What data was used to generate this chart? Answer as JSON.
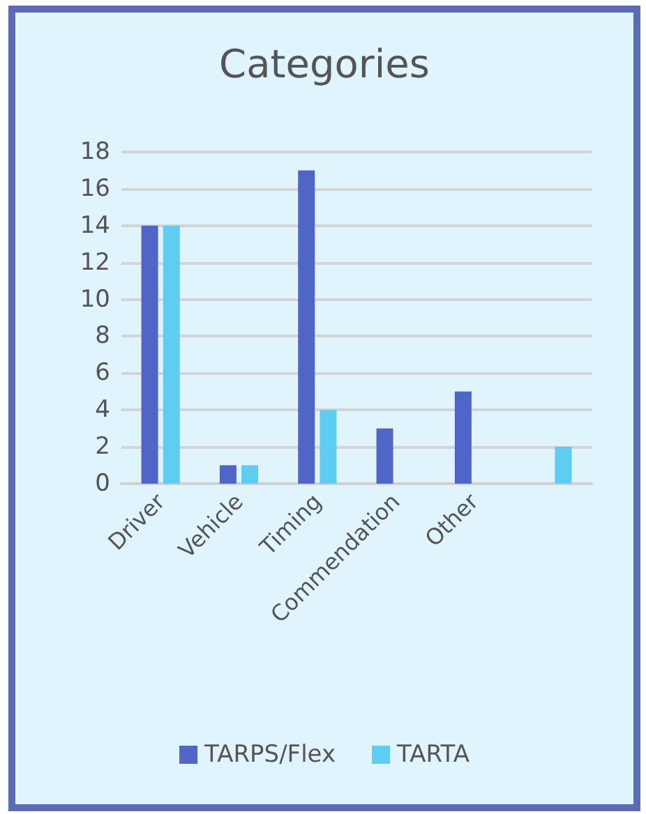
{
  "chart_data": {
    "type": "bar",
    "title": "Categories",
    "categories": [
      "Driver",
      "Vehicle",
      "Timing",
      "Commendation",
      "Other",
      null
    ],
    "series": [
      {
        "name": "TARPS/Flex",
        "color": "#4f66c8",
        "values": [
          14,
          1,
          17,
          3,
          5,
          null
        ]
      },
      {
        "name": "TARTA",
        "color": "#5fcdf2",
        "values": [
          14,
          1,
          4,
          null,
          null,
          2
        ]
      }
    ],
    "ylim": [
      0,
      18
    ],
    "yticks": [
      0,
      2,
      4,
      6,
      8,
      10,
      12,
      14,
      16,
      18
    ],
    "grid": "y",
    "legend": "bottom"
  }
}
